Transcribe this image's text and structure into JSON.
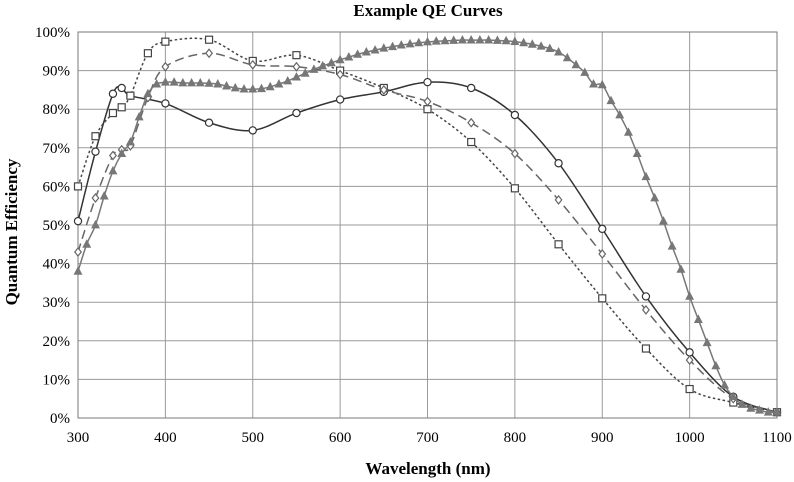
{
  "chart_data": {
    "type": "line",
    "title": "Example QE Curves",
    "xlabel": "Wavelength (nm)",
    "ylabel": "Quantum Efficiency",
    "xlim": [
      300,
      1100
    ],
    "ylim": [
      0,
      100
    ],
    "x_ticks": [
      300,
      400,
      500,
      600,
      700,
      800,
      900,
      1000,
      1100
    ],
    "y_ticks": [
      0,
      10,
      20,
      30,
      40,
      50,
      60,
      70,
      80,
      90,
      100
    ],
    "x_tick_labels": [
      "300",
      "400",
      "500",
      "600",
      "700",
      "800",
      "900",
      "1000",
      "1100"
    ],
    "y_tick_labels": [
      "0%",
      "10%",
      "20%",
      "30%",
      "40%",
      "50%",
      "60%",
      "70%",
      "80%",
      "90%",
      "100%"
    ],
    "grid": true,
    "legend": "none",
    "series": [
      {
        "name": "circle-solid",
        "marker": "circle",
        "line_style": "solid",
        "color": "#333333",
        "points": [
          [
            300,
            51
          ],
          [
            320,
            69
          ],
          [
            340,
            84
          ],
          [
            350,
            85.5
          ],
          [
            360,
            83.5
          ],
          [
            400,
            81.5
          ],
          [
            450,
            76.5
          ],
          [
            500,
            74.5
          ],
          [
            550,
            79
          ],
          [
            600,
            82.5
          ],
          [
            650,
            84.5
          ],
          [
            700,
            87
          ],
          [
            750,
            85.5
          ],
          [
            800,
            78.5
          ],
          [
            850,
            66
          ],
          [
            900,
            49
          ],
          [
            950,
            31.5
          ],
          [
            1000,
            17
          ],
          [
            1050,
            5.5
          ],
          [
            1100,
            1.5
          ]
        ]
      },
      {
        "name": "square-dotted",
        "marker": "square",
        "line_style": "dotted",
        "color": "#444444",
        "points": [
          [
            300,
            60
          ],
          [
            320,
            73
          ],
          [
            340,
            79
          ],
          [
            350,
            80.5
          ],
          [
            360,
            83.5
          ],
          [
            380,
            94.5
          ],
          [
            400,
            97.5
          ],
          [
            450,
            98
          ],
          [
            500,
            92.5
          ],
          [
            550,
            94
          ],
          [
            600,
            90
          ],
          [
            650,
            85.5
          ],
          [
            700,
            80
          ],
          [
            750,
            71.5
          ],
          [
            800,
            59.5
          ],
          [
            850,
            45
          ],
          [
            900,
            31
          ],
          [
            950,
            18
          ],
          [
            1000,
            7.5
          ],
          [
            1050,
            4
          ],
          [
            1100,
            1.5
          ]
        ]
      },
      {
        "name": "diamond-dashed",
        "marker": "diamond",
        "line_style": "dashed",
        "color": "#666666",
        "points": [
          [
            300,
            43
          ],
          [
            320,
            57
          ],
          [
            340,
            68
          ],
          [
            350,
            69.5
          ],
          [
            360,
            70.5
          ],
          [
            380,
            83
          ],
          [
            400,
            91
          ],
          [
            450,
            94.5
          ],
          [
            500,
            91.5
          ],
          [
            550,
            91
          ],
          [
            600,
            89
          ],
          [
            650,
            85
          ],
          [
            700,
            82
          ],
          [
            750,
            76.5
          ],
          [
            800,
            68.5
          ],
          [
            850,
            56.5
          ],
          [
            900,
            42.5
          ],
          [
            950,
            28
          ],
          [
            1000,
            15
          ],
          [
            1050,
            5
          ],
          [
            1100,
            1.5
          ]
        ]
      },
      {
        "name": "triangle-solid",
        "marker": "triangle",
        "line_style": "solid",
        "color": "#777777",
        "points": [
          [
            300,
            38
          ],
          [
            310,
            45
          ],
          [
            320,
            50
          ],
          [
            330,
            57.5
          ],
          [
            340,
            64
          ],
          [
            350,
            68.5
          ],
          [
            360,
            71.5
          ],
          [
            370,
            78
          ],
          [
            380,
            84
          ],
          [
            390,
            86.5
          ],
          [
            400,
            87
          ],
          [
            410,
            87
          ],
          [
            420,
            86.8
          ],
          [
            430,
            86.8
          ],
          [
            440,
            86.8
          ],
          [
            450,
            86.7
          ],
          [
            460,
            86.5
          ],
          [
            470,
            86
          ],
          [
            480,
            85.5
          ],
          [
            490,
            85.2
          ],
          [
            500,
            85.2
          ],
          [
            510,
            85.3
          ],
          [
            520,
            85.8
          ],
          [
            530,
            86.5
          ],
          [
            540,
            87.3
          ],
          [
            550,
            88.3
          ],
          [
            560,
            89.3
          ],
          [
            570,
            90.3
          ],
          [
            580,
            91.2
          ],
          [
            590,
            92
          ],
          [
            600,
            92.8
          ],
          [
            610,
            93.5
          ],
          [
            620,
            94.2
          ],
          [
            630,
            94.8
          ],
          [
            640,
            95.3
          ],
          [
            650,
            95.8
          ],
          [
            660,
            96.2
          ],
          [
            670,
            96.6
          ],
          [
            680,
            96.9
          ],
          [
            690,
            97.2
          ],
          [
            700,
            97.4
          ],
          [
            710,
            97.6
          ],
          [
            720,
            97.7
          ],
          [
            730,
            97.8
          ],
          [
            740,
            97.9
          ],
          [
            750,
            97.9
          ],
          [
            760,
            97.9
          ],
          [
            770,
            97.9
          ],
          [
            780,
            97.8
          ],
          [
            790,
            97.7
          ],
          [
            800,
            97.5
          ],
          [
            810,
            97.2
          ],
          [
            820,
            96.8
          ],
          [
            830,
            96.3
          ],
          [
            840,
            95.7
          ],
          [
            850,
            94.8
          ],
          [
            860,
            93.3
          ],
          [
            870,
            91.5
          ],
          [
            880,
            89.5
          ],
          [
            890,
            86.5
          ],
          [
            900,
            86.3
          ],
          [
            910,
            82.2
          ],
          [
            920,
            78.5
          ],
          [
            930,
            74
          ],
          [
            940,
            68.5
          ],
          [
            950,
            62.5
          ],
          [
            960,
            57
          ],
          [
            970,
            51
          ],
          [
            980,
            44.5
          ],
          [
            990,
            38.5
          ],
          [
            1000,
            31.5
          ],
          [
            1010,
            25.5
          ],
          [
            1020,
            19.5
          ],
          [
            1030,
            13.5
          ],
          [
            1040,
            8.5
          ],
          [
            1050,
            5.5
          ],
          [
            1060,
            3.5
          ],
          [
            1070,
            2.5
          ],
          [
            1080,
            2
          ],
          [
            1090,
            1.5
          ],
          [
            1100,
            1.5
          ]
        ]
      }
    ]
  }
}
